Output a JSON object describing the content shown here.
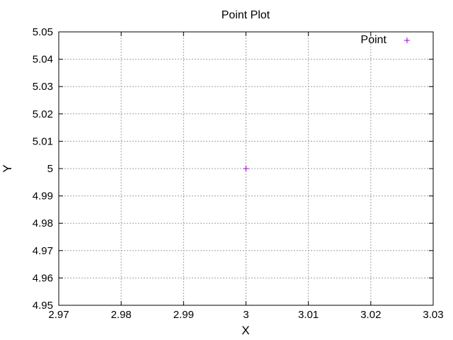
{
  "chart_data": {
    "type": "scatter",
    "title": "Point Plot",
    "xlabel": "X",
    "ylabel": "Y",
    "xlim": [
      2.97,
      3.03
    ],
    "ylim": [
      4.95,
      5.05
    ],
    "xticks": [
      2.97,
      2.98,
      2.99,
      3,
      3.01,
      3.02,
      3.03
    ],
    "xtick_labels": [
      "2.97",
      "2.98",
      "2.99",
      "3",
      "3.01",
      "3.02",
      "3.03"
    ],
    "yticks": [
      4.95,
      4.96,
      4.97,
      4.98,
      4.99,
      5,
      5.01,
      5.02,
      5.03,
      5.04,
      5.05
    ],
    "ytick_labels": [
      "4.95",
      "4.96",
      "4.97",
      "4.98",
      "4.99",
      "5",
      "5.01",
      "5.02",
      "5.03",
      "5.04",
      "5.05"
    ],
    "grid": true,
    "legend_position": "top-right",
    "marker": "+",
    "series": [
      {
        "name": "Point",
        "color": "#9400d3",
        "points": [
          {
            "x": 3,
            "y": 5
          }
        ]
      }
    ]
  }
}
